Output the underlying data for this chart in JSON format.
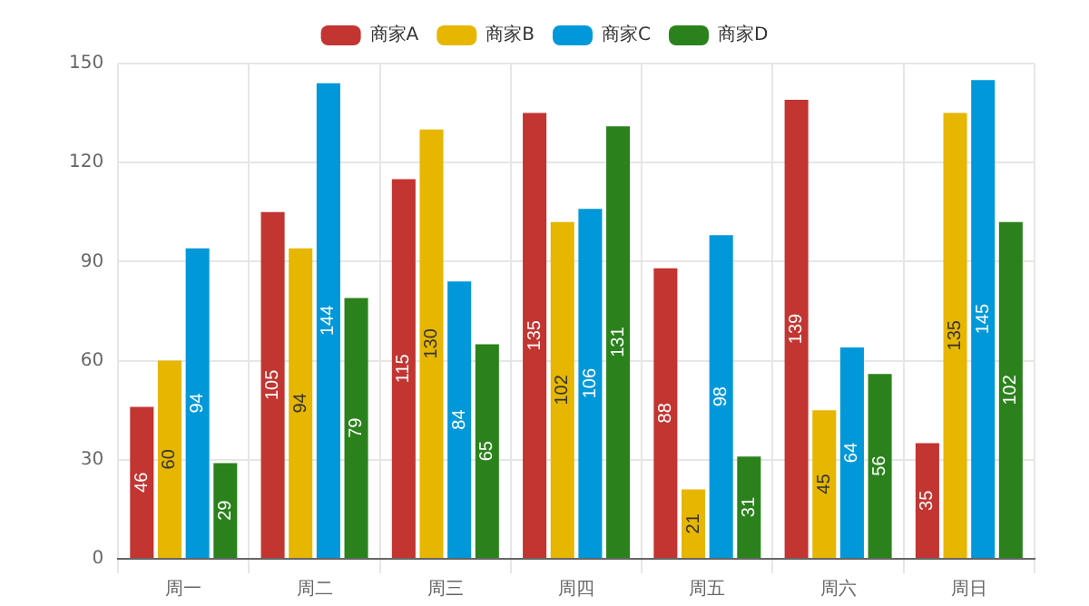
{
  "chart_data": {
    "type": "bar",
    "categories": [
      "周一",
      "周二",
      "周三",
      "周四",
      "周五",
      "周六",
      "周日"
    ],
    "series": [
      {
        "name": "商家A",
        "color": "#c23531",
        "values": [
          46,
          105,
          115,
          135,
          88,
          139,
          35
        ]
      },
      {
        "name": "商家B",
        "color": "#e6b600",
        "values": [
          60,
          94,
          130,
          102,
          21,
          45,
          135
        ]
      },
      {
        "name": "商家C",
        "color": "#0098d9",
        "values": [
          94,
          144,
          84,
          106,
          98,
          64,
          145
        ]
      },
      {
        "name": "商家D",
        "color": "#2b821d",
        "values": [
          29,
          79,
          65,
          131,
          31,
          56,
          102
        ]
      }
    ],
    "ylim": [
      0,
      150
    ],
    "yticks": [
      0,
      30,
      60,
      90,
      120,
      150
    ],
    "grid": true,
    "legend": "top",
    "data_labels": true
  }
}
